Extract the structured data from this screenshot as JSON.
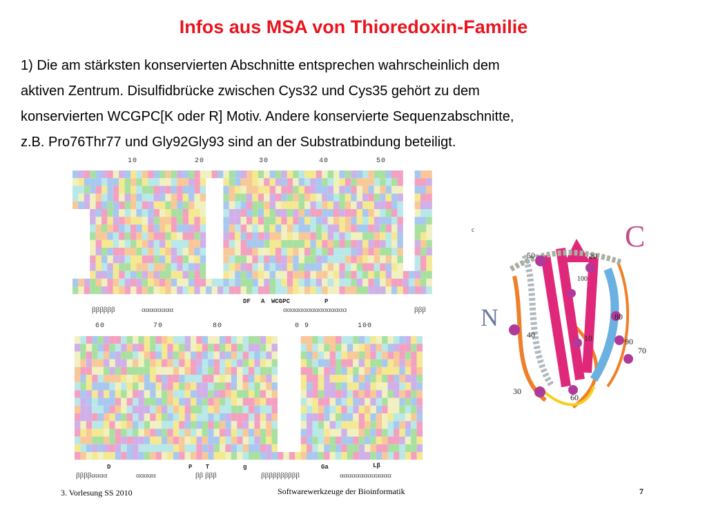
{
  "title": "Infos aus MSA von Thioredoxin-Familie",
  "body": {
    "lines": [
      "1) Die am stärksten konservierten Abschnitte entsprechen wahrscheinlich dem",
      "aktiven Zentrum. Disulfidbrücke zwischen Cys32 und Cys35 gehört zu dem",
      "konservierten WCGPC[K oder R] Motiv. Andere konservierte Sequenzabschnitte,",
      "z.B. Pro76Thr77 und Gly92Gly93 sind an der Substratbindung beteiligt."
    ]
  },
  "alignment": {
    "top_ruler": [
      "10",
      "20",
      "30",
      "40",
      "50"
    ],
    "top_motif": [
      "DF",
      "A",
      "WCGPC",
      "P"
    ],
    "top_ss": [
      "ββββββ",
      "αααααααα",
      "αααααααααααααααα",
      "βββ"
    ],
    "bottom_ruler": [
      "60",
      "70",
      "80",
      "0 9",
      "100"
    ],
    "bottom_motif": [
      "D",
      "P T",
      "g",
      "Ga",
      "Lβ"
    ],
    "bottom_ss": [
      "ββββαααα",
      "ααααα",
      "ββ βββ",
      "ββββββββββ",
      "ααααααααααααα"
    ]
  },
  "structure": {
    "small_label": "c",
    "c_terminus": "C",
    "n_terminus": "N",
    "residues": [
      "50",
      "20",
      "100",
      "80",
      "40",
      "10",
      "90",
      "70",
      "30",
      "60"
    ]
  },
  "footer": {
    "left": "3. Vorlesung SS 2010",
    "center": "Softwarewerkzeuge der Bioinformatik",
    "page": "7"
  }
}
